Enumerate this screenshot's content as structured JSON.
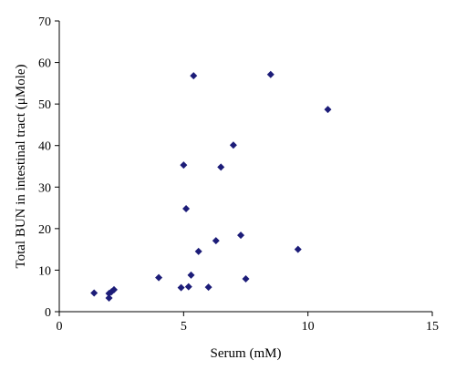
{
  "chart_data": {
    "type": "scatter",
    "xlabel": "Serum (mM)",
    "ylabel": "Total BUN in intestinal tract (μMole)",
    "xlim": [
      0,
      15
    ],
    "ylim": [
      0,
      70
    ],
    "xticks": [
      "0",
      "5",
      "10",
      "15"
    ],
    "yticks": [
      "0",
      "10",
      "20",
      "30",
      "40",
      "50",
      "60",
      "70"
    ],
    "grid": false,
    "marker": "diamond",
    "marker_color": "#1c1c78",
    "points": [
      {
        "x": 1.4,
        "y": 4.5
      },
      {
        "x": 2.0,
        "y": 4.4
      },
      {
        "x": 2.0,
        "y": 3.3
      },
      {
        "x": 2.1,
        "y": 4.8
      },
      {
        "x": 2.2,
        "y": 5.3
      },
      {
        "x": 4.0,
        "y": 8.2
      },
      {
        "x": 4.9,
        "y": 5.8
      },
      {
        "x": 5.0,
        "y": 35.3
      },
      {
        "x": 5.1,
        "y": 24.8
      },
      {
        "x": 5.2,
        "y": 6.0
      },
      {
        "x": 5.3,
        "y": 8.8
      },
      {
        "x": 5.4,
        "y": 56.8
      },
      {
        "x": 5.6,
        "y": 14.5
      },
      {
        "x": 6.0,
        "y": 5.9
      },
      {
        "x": 6.3,
        "y": 17.1
      },
      {
        "x": 6.5,
        "y": 34.8
      },
      {
        "x": 7.0,
        "y": 40.1
      },
      {
        "x": 7.3,
        "y": 18.4
      },
      {
        "x": 7.5,
        "y": 7.9
      },
      {
        "x": 8.5,
        "y": 57.1
      },
      {
        "x": 9.6,
        "y": 15.0
      },
      {
        "x": 10.8,
        "y": 48.7
      }
    ]
  }
}
